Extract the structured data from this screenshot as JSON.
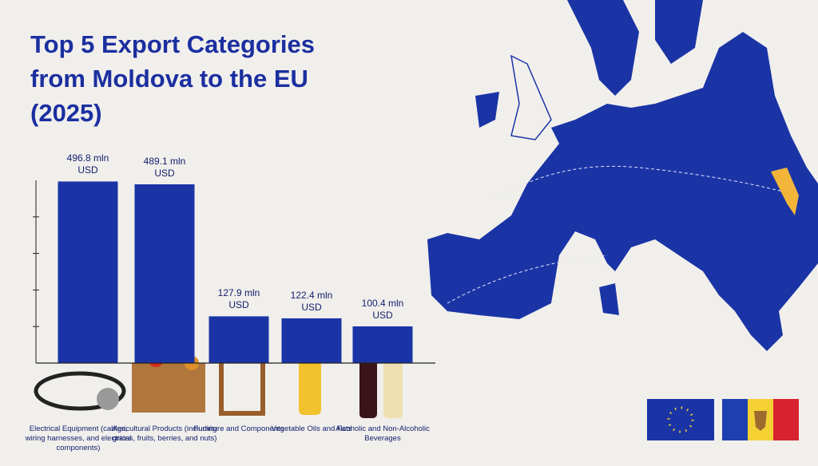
{
  "chart_data": {
    "type": "bar",
    "title": "Top 5 Export Categories from Moldova to the EU (2025)",
    "categories": [
      "Electrical Equipment (cables, wiring harnesses, and electrical components)",
      "Agricultural Products (including grains, fruits, berries, and nuts)",
      "Furniture and Components",
      "Vegetable Oils and Fats",
      "Alcoholic and Non-Alcoholic Beverages"
    ],
    "values": [
      496.8,
      489.1,
      127.9,
      122.4,
      100.4
    ],
    "value_labels": [
      "496.8 mln USD",
      "489.1 mln USD",
      "127.9 mln USD",
      "122.4 mln USD",
      "100.4 mln USD"
    ],
    "color": "#1a34a6",
    "ylim": [
      0,
      500
    ],
    "yticks": [
      100,
      200,
      300,
      400
    ]
  }
}
